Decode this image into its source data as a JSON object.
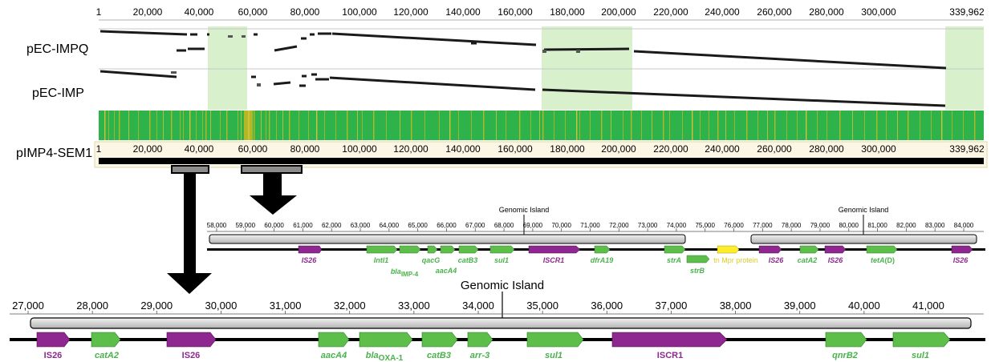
{
  "alignment": {
    "top_ticks": [
      "1",
      "20,000",
      "40,000",
      "60,000",
      "80,000",
      "100,000",
      "120,000",
      "140,000",
      "160,000",
      "180,000",
      "200,000",
      "220,000",
      "240,000",
      "260,000",
      "280,000",
      "300,000",
      "339,962"
    ],
    "plasmid_a": "pEC-IMPQ",
    "plasmid_b": "pEC-IMP",
    "reference": "pIMP4-SEM1",
    "ref_ticks": [
      "1",
      "20,000",
      "40,000",
      "60,000",
      "80,000",
      "100,000",
      "120,000",
      "140,000",
      "160,000",
      "180,000",
      "200,000",
      "220,000",
      "240,000",
      "260,000",
      "280,000",
      "300,000",
      "339,962"
    ],
    "colors": {
      "identity": "#2db34a",
      "highlight": "#d8f0cc",
      "olive": "#b5b826",
      "ref_band": "#fbf7e4",
      "gray_box": "#8c8c8c"
    }
  },
  "middle_map": {
    "ticks": [
      "58,000",
      "59,000",
      "60,000",
      "61,000",
      "62,000",
      "63,000",
      "64,000",
      "65,000",
      "66,000",
      "67,000",
      "68,000",
      "69,000",
      "70,000",
      "71,000",
      "72,000",
      "73,000",
      "74,000",
      "75,000",
      "76,000",
      "77,000",
      "78,000",
      "79,000",
      "80,000",
      "81,000",
      "82,000",
      "83,000",
      "84,000"
    ],
    "island_label_1": "Genomic Island",
    "island_label_2": "Genomic Island",
    "genes": {
      "is26_a": "IS26",
      "intl1": "Intl1",
      "bla_main": "bla",
      "bla_sub": "IMP-4",
      "qacg": "qacG",
      "aaca4": "aacA4",
      "catb3": "catB3",
      "sul1": "sul1",
      "iscr1": "ISCR1",
      "dfra19": "dfrA19",
      "stra": "strA",
      "strb": "strB",
      "tnmpr": "tn Mpr protein",
      "is26_b": "IS26",
      "cata2": "catA2",
      "is26_c": "IS26",
      "teta_main": "tetA",
      "teta_suffix": "(D)",
      "is26_d": "IS26"
    }
  },
  "bottom_map": {
    "ticks": [
      "27,000",
      "28,000",
      "29,000",
      "30,000",
      "31,000",
      "32,000",
      "33,000",
      "34,000",
      "35,000",
      "36,000",
      "37,000",
      "38,000",
      "39,000",
      "40,000",
      "41,000"
    ],
    "island_label": "Genomic Island",
    "genes": {
      "is26_a": "IS26",
      "cata2": "catA2",
      "is26_b": "IS26",
      "aaca4": "aacA4",
      "bla_main": "bla",
      "bla_sub": "OXA-1",
      "catb3": "catB3",
      "arr3": "arr-3",
      "sul1_a": "sul1",
      "iscr1": "ISCR1",
      "qnrb2": "qnrB2",
      "sul1_b": "sul1"
    }
  },
  "gene_colors": {
    "resistance": "#5dbf4a",
    "insertion": "#8e278f",
    "other": "#ffed2b",
    "label_green": "#49b34b",
    "label_purple": "#8b2a8d",
    "label_yellow": "#d6cf2a"
  }
}
